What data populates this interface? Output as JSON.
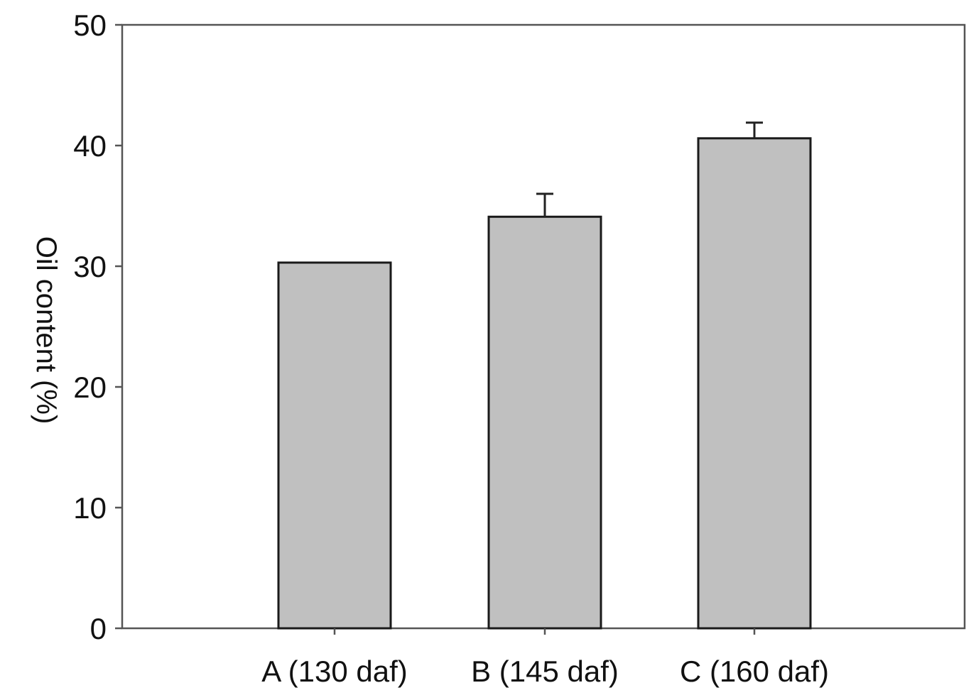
{
  "chart_data": {
    "type": "bar",
    "categories": [
      "A (130 daf)",
      "B (145 daf)",
      "C (160 daf)"
    ],
    "values": [
      30.3,
      34.1,
      40.6
    ],
    "error_upper": [
      0,
      1.9,
      1.3
    ],
    "xlabel": "",
    "ylabel": "Oil content (%)",
    "ylim": [
      0,
      50
    ],
    "yticks": [
      0,
      10,
      20,
      30,
      40,
      50
    ],
    "grid": false,
    "legend": "none",
    "bar_color": "#c0c0c0",
    "bar_edge_color": "#1a1a1a"
  }
}
